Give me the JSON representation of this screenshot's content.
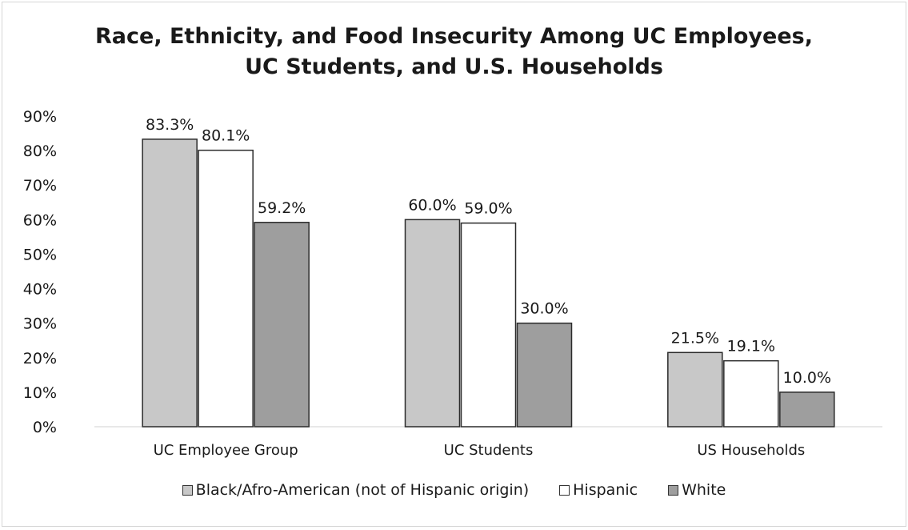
{
  "chart_data": {
    "type": "bar",
    "title": "Race, Ethnicity, and Food Insecurity Among UC Employees, UC Students, and U.S. Households",
    "title_lines": [
      "Race, Ethnicity, and Food Insecurity Among UC Employees,",
      "UC Students, and U.S. Households"
    ],
    "categories": [
      "UC Employee Group",
      "UC Students",
      "US Households"
    ],
    "series": [
      {
        "name": "Black/Afro-American (not of Hispanic origin)",
        "values": [
          83.3,
          60.0,
          21.5
        ],
        "labels": [
          "83.3%",
          "60.0%",
          "21.5%"
        ],
        "color": "#c8c8c8"
      },
      {
        "name": "Hispanic",
        "values": [
          80.1,
          59.0,
          19.1
        ],
        "labels": [
          "80.1%",
          "59.0%",
          "19.1%"
        ],
        "color": "#ffffff"
      },
      {
        "name": "White",
        "values": [
          59.2,
          30.0,
          10.0
        ],
        "labels": [
          "59.2%",
          "30.0%",
          "10.0%"
        ],
        "color": "#9e9e9e"
      }
    ],
    "y_ticks": [
      "0%",
      "10%",
      "20%",
      "30%",
      "40%",
      "50%",
      "60%",
      "70%",
      "80%",
      "90%"
    ],
    "ylim": [
      0,
      90
    ],
    "xlabel": "",
    "ylabel": "",
    "grid": false,
    "legend_position": "bottom"
  }
}
